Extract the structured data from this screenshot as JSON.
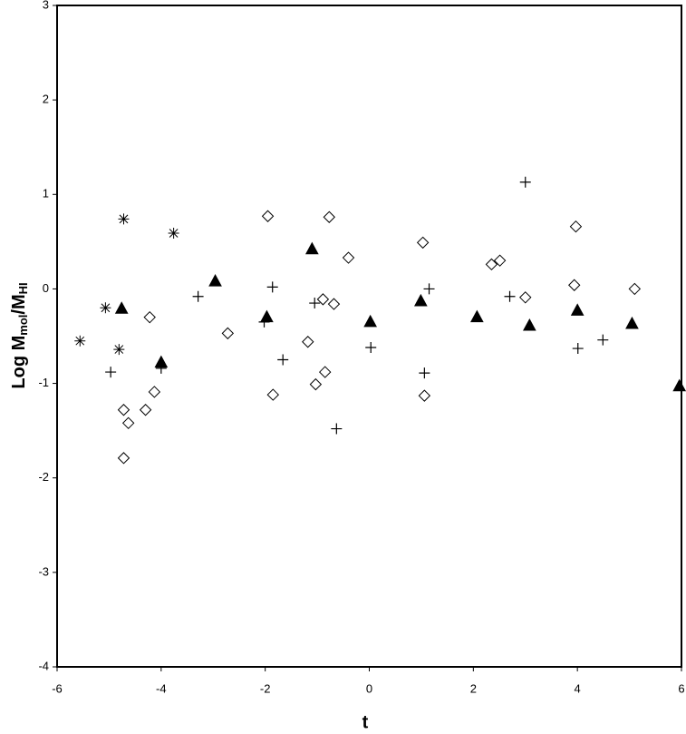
{
  "chart_data": {
    "type": "scatter",
    "xlabel": "t",
    "ylabel_parts": [
      "Log M",
      "mol",
      "/M",
      "HI"
    ],
    "xlim": [
      -6,
      6
    ],
    "xticks": [
      -6,
      -4,
      -2,
      0,
      2,
      4,
      6
    ],
    "ylim": [
      -4,
      3
    ],
    "yticks": [
      -4,
      -3,
      -2,
      -1,
      0,
      1,
      2,
      3
    ],
    "series": [
      {
        "marker": "diamond",
        "color": "#000000",
        "x": [
          -1.95,
          -0.77,
          3.97,
          1.03,
          -0.4,
          2.51,
          2.35,
          3.94,
          5.1,
          3.0,
          -0.89,
          -0.68,
          -4.22,
          -2.72,
          -1.18,
          -0.85,
          -1.03,
          -4.13,
          -1.85,
          1.06,
          -4.3,
          -4.72,
          -4.63,
          -4.72
        ],
        "values": [
          0.77,
          0.76,
          0.66,
          0.49,
          0.33,
          0.3,
          0.26,
          0.04,
          0.0,
          -0.09,
          -0.11,
          -0.16,
          -0.3,
          -0.47,
          -0.56,
          -0.88,
          -1.01,
          -1.09,
          -1.12,
          -1.13,
          -1.28,
          -1.28,
          -1.42,
          -1.79
        ]
      },
      {
        "marker": "triangle",
        "color": "#000000",
        "x": [
          -4.76,
          -4.0,
          -2.96,
          -1.97,
          -1.1,
          0.02,
          0.99,
          2.07,
          3.08,
          4.0,
          5.05,
          5.96
        ],
        "values": [
          -0.21,
          -0.78,
          0.08,
          -0.3,
          0.42,
          -0.35,
          -0.13,
          -0.3,
          -0.39,
          -0.23,
          -0.37,
          -1.03
        ]
      },
      {
        "marker": "plus",
        "color": "#000000",
        "x": [
          -3.29,
          -1.86,
          -2.02,
          -1.05,
          -1.66,
          -0.63,
          0.03,
          1.15,
          1.06,
          3.0,
          2.7,
          4.01,
          4.49,
          -4.97,
          -4.0
        ],
        "values": [
          -0.08,
          0.02,
          -0.35,
          -0.15,
          -0.75,
          -1.48,
          -0.62,
          0.0,
          -0.89,
          1.13,
          -0.08,
          -0.63,
          -0.54,
          -0.88,
          -0.84
        ]
      },
      {
        "marker": "asterisk",
        "color": "#000000",
        "x": [
          -4.72,
          -3.76,
          -5.07,
          -5.56,
          -4.81
        ],
        "values": [
          0.74,
          0.59,
          -0.2,
          -0.55,
          -0.64
        ]
      }
    ]
  }
}
